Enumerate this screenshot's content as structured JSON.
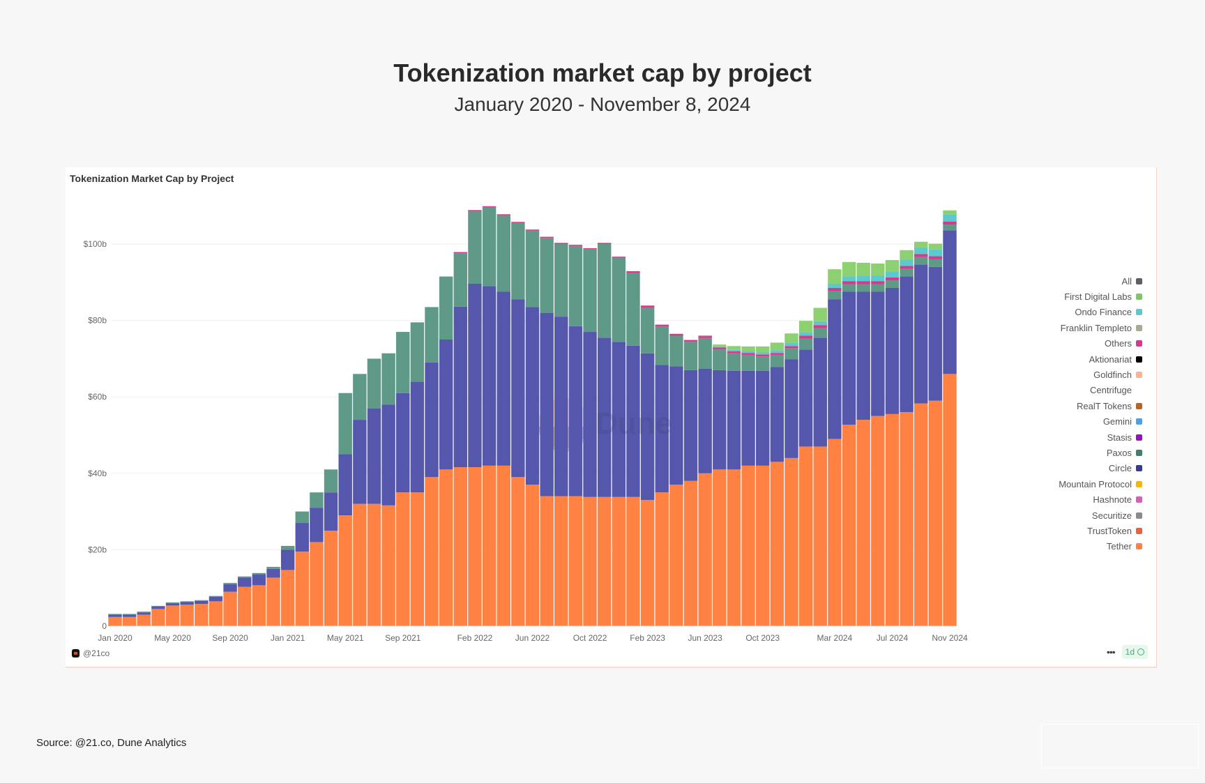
{
  "header": {
    "title": "Tokenization market cap by project",
    "subtitle": "January 2020 - November 8, 2024"
  },
  "card": {
    "title": "Tokenization Market Cap by Project",
    "author": "@21co",
    "more_label": "•••",
    "refresh_badge": "1d",
    "watermark": "Dune"
  },
  "source": "Source: @21.co, Dune Analytics",
  "legend": [
    {
      "label": "All",
      "color": "#5b5f66"
    },
    {
      "label": "First Digital Labs",
      "color": "#7cc864"
    },
    {
      "label": "Ondo Finance",
      "color": "#5cc8cf"
    },
    {
      "label": "Franklin Templeto",
      "color": "#a6ab98"
    },
    {
      "label": "Others",
      "color": "#d43b8c"
    },
    {
      "label": "Aktionariat",
      "color": "#000000"
    },
    {
      "label": "Goldfinch",
      "color": "#fdb38d"
    },
    {
      "label": "Centrifuge",
      "color": ""
    },
    {
      "label": "RealT Tokens",
      "color": "#b5652a"
    },
    {
      "label": "Gemini",
      "color": "#529fe0"
    },
    {
      "label": "Stasis",
      "color": "#9a0fbf"
    },
    {
      "label": "Paxos",
      "color": "#3e7f6f"
    },
    {
      "label": "Circle",
      "color": "#36399a"
    },
    {
      "label": "Mountain Protocol",
      "color": "#f2b900"
    },
    {
      "label": "Hashnote",
      "color": "#d35fb9"
    },
    {
      "label": "Securitize",
      "color": "#8a8a8a"
    },
    {
      "label": "TrustToken",
      "color": "#f2603a"
    },
    {
      "label": "Tether",
      "color": "#ff8243"
    }
  ],
  "chart_data": {
    "type": "bar",
    "stacked": true,
    "title": "Tokenization Market Cap by Project",
    "xlabel": "",
    "ylabel": "",
    "ylim": [
      0,
      112
    ],
    "y_ticks": [
      0,
      20,
      40,
      60,
      80,
      100
    ],
    "y_tick_labels": [
      "0",
      "$20b",
      "$40b",
      "$60b",
      "$80b",
      "$100b"
    ],
    "x_tick_labels": [
      "Jan 2020",
      "May 2020",
      "Sep 2020",
      "Jan 2021",
      "May 2021",
      "Sep 2021",
      "Feb 2022",
      "Jun 2022",
      "Oct 2022",
      "Feb 2023",
      "Jun 2023",
      "Oct 2023",
      "Mar 2024",
      "Jul 2024",
      "Nov 2024"
    ],
    "x_tick_positions": [
      "2020-01",
      "2020-05",
      "2020-09",
      "2021-01",
      "2021-05",
      "2021-09",
      "2022-02",
      "2022-06",
      "2022-10",
      "2023-02",
      "2023-06",
      "2023-10",
      "2024-03",
      "2024-07",
      "2024-11"
    ],
    "x_start": "2020-01",
    "x_end": "2024-11",
    "unit": "USD billions",
    "grid": "horizontal",
    "legend_position": "right",
    "series": [
      {
        "name": "Tether",
        "color": "#ff8243",
        "values": [
          2.4,
          2.4,
          3,
          4.5,
          5.4,
          5.6,
          5.8,
          6.5,
          9,
          10.3,
          10.7,
          12.7,
          14.7,
          19.5,
          22,
          25,
          29,
          32,
          32,
          31.6,
          35,
          35,
          39,
          41,
          41.6,
          41.6,
          42,
          42,
          39,
          37,
          34,
          34,
          34,
          33.8,
          33.8,
          33.8,
          33.8,
          33,
          35,
          37,
          38,
          40,
          41,
          41,
          42,
          42,
          43,
          44,
          47,
          47,
          49,
          52.7,
          54,
          55,
          55.5,
          56,
          58.3,
          59,
          66
        ]
      },
      {
        "name": "Circle",
        "color": "#5557ad",
        "values": [
          0.6,
          0.6,
          0.6,
          0.6,
          0.6,
          0.7,
          0.8,
          1.2,
          2,
          2.4,
          2.8,
          2.3,
          5.3,
          7.5,
          9,
          10,
          16,
          22,
          25,
          26.4,
          26,
          29,
          30,
          34,
          42,
          48,
          47,
          45.5,
          46.5,
          46.5,
          48,
          47,
          44.5,
          43.2,
          41.7,
          40.6,
          39.6,
          38.4,
          33.4,
          31,
          29,
          27.4,
          26,
          25.8,
          24.8,
          24.8,
          24.8,
          25.8,
          25.4,
          28.5,
          36.5,
          34.8,
          33.5,
          32.5,
          33,
          35.5,
          36.3,
          35,
          37.6
        ]
      },
      {
        "name": "Paxos",
        "color": "#5e9a87",
        "values": [
          0.2,
          0.2,
          0.2,
          0.2,
          0.2,
          0.2,
          0.2,
          0.2,
          0.3,
          0.3,
          0.4,
          0.5,
          1,
          3,
          4,
          6,
          16,
          12,
          13,
          13.4,
          16,
          15.5,
          14.5,
          16.5,
          14,
          19,
          20.6,
          20,
          20,
          20,
          19.6,
          19,
          21,
          21.6,
          24.5,
          22,
          19,
          12,
          10,
          8,
          7.4,
          8,
          5.4,
          4.6,
          4.2,
          3.8,
          3.2,
          3,
          2.8,
          2.5,
          2.2,
          2,
          2,
          2,
          2,
          2,
          2,
          2,
          1.5
        ]
      },
      {
        "name": "Others",
        "color": "#d43b8c",
        "values": [
          0,
          0,
          0,
          0,
          0,
          0,
          0,
          0,
          0,
          0,
          0,
          0,
          0,
          0,
          0,
          0,
          0,
          0,
          0,
          0,
          0,
          0,
          0,
          0,
          0.3,
          0.3,
          0.3,
          0.3,
          0.3,
          0.3,
          0.3,
          0.3,
          0.3,
          0.3,
          0.3,
          0.3,
          0.5,
          0.5,
          0.5,
          0.5,
          0.5,
          0.5,
          0.5,
          0.5,
          0.5,
          0.5,
          0.5,
          0.5,
          0.8,
          0.8,
          0.8,
          0.8,
          0.8,
          0.8,
          0.8,
          0.8,
          0.8,
          0.8,
          0.8
        ]
      },
      {
        "name": "Ondo Finance",
        "color": "#5cc8cf",
        "values": [
          0,
          0,
          0,
          0,
          0,
          0,
          0,
          0,
          0,
          0,
          0,
          0,
          0,
          0,
          0,
          0,
          0,
          0,
          0,
          0,
          0,
          0,
          0,
          0,
          0,
          0,
          0,
          0,
          0,
          0,
          0,
          0,
          0,
          0,
          0,
          0,
          0,
          0,
          0,
          0,
          0,
          0.2,
          0.3,
          0.4,
          0.5,
          0.6,
          0.7,
          0.8,
          0.9,
          1,
          1.1,
          1.2,
          1.3,
          1.4,
          1.5,
          1.6,
          1.7,
          1.8,
          1.9
        ]
      },
      {
        "name": "First Digital Labs",
        "color": "#8dd071",
        "values": [
          0,
          0,
          0,
          0,
          0,
          0,
          0,
          0,
          0,
          0,
          0,
          0,
          0,
          0,
          0,
          0,
          0,
          0,
          0,
          0,
          0,
          0,
          0,
          0,
          0,
          0,
          0,
          0,
          0,
          0,
          0,
          0,
          0,
          0,
          0,
          0,
          0,
          0,
          0,
          0,
          0,
          0,
          0.5,
          1,
          1.2,
          1.5,
          2,
          2.5,
          3,
          3.5,
          3.8,
          3.8,
          3.5,
          3.2,
          3,
          2.5,
          1.5,
          1.5,
          1
        ]
      }
    ]
  }
}
